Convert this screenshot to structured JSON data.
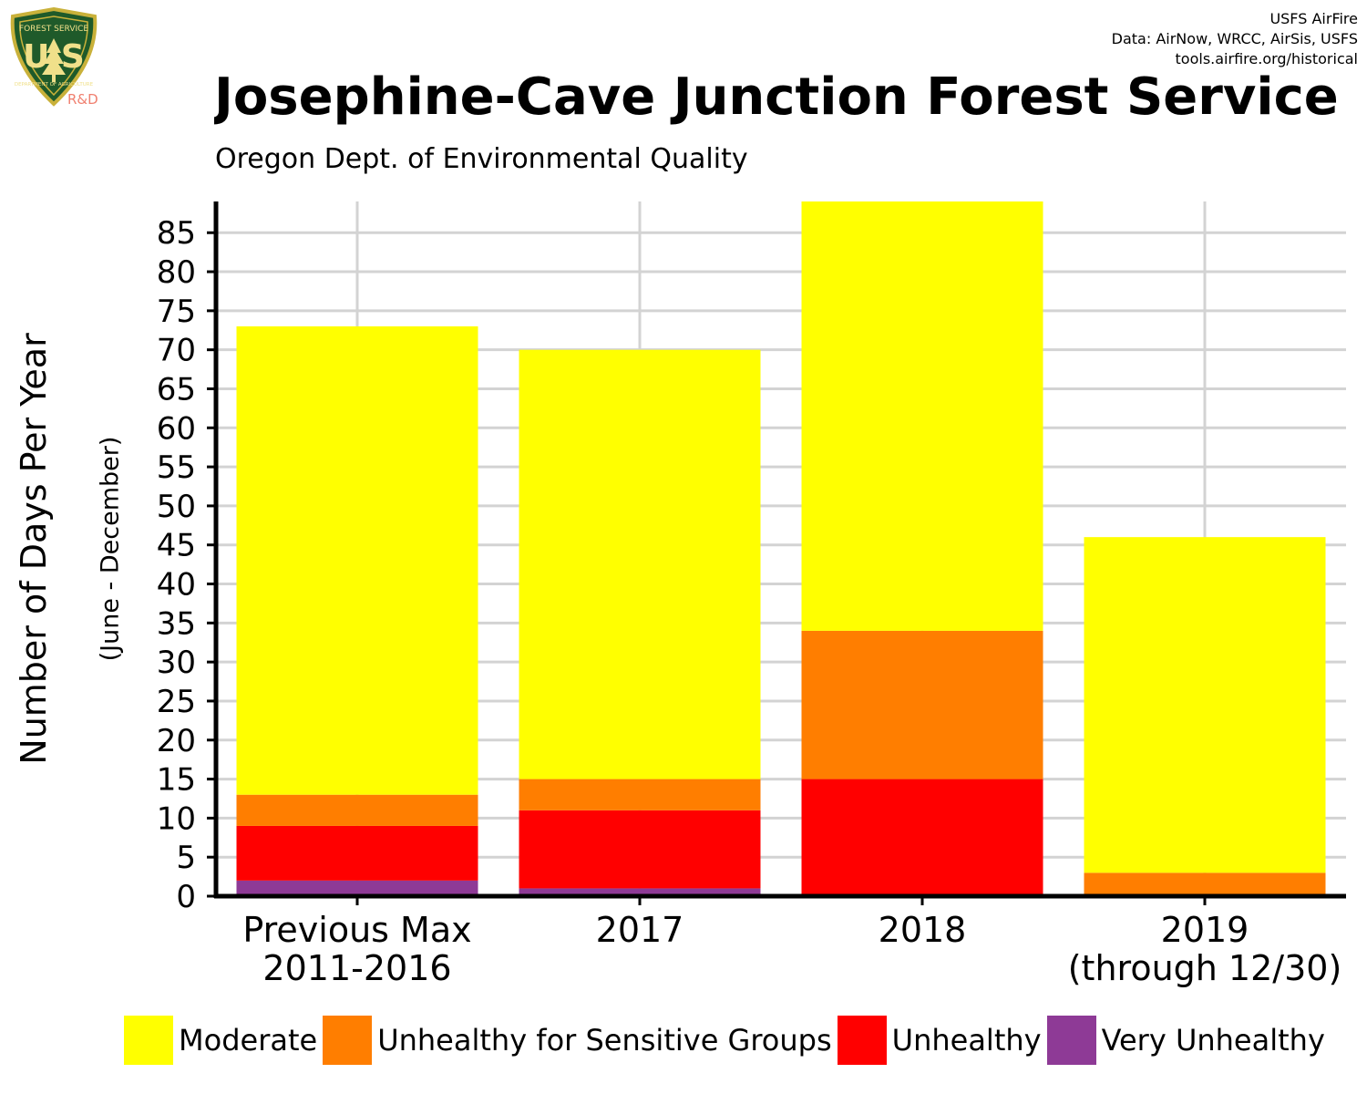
{
  "logo": {
    "top_text": "FOREST SERVICE",
    "letters": "U S",
    "bottom_text": "DEPARTMENT OF AGRICULTURE",
    "tag": "R&D"
  },
  "credits": {
    "line1": "USFS AirFire",
    "line2": "Data: AirNow, WRCC, AirSis, USFS",
    "line3": "tools.airfire.org/historical"
  },
  "chart_data": {
    "type": "bar",
    "stacked": true,
    "title": "Josephine-Cave Junction Forest Service",
    "subtitle": "Oregon Dept. of Environmental Quality",
    "ylabel": "Number of Days Per Year",
    "ylabel_sub": "(June - December)",
    "xlabel": "",
    "categories": [
      "Previous Max\n2011-2016",
      "2017",
      "2018",
      "2019\n(through 12/30)"
    ],
    "ylim": [
      0,
      89
    ],
    "yticks": [
      0,
      5,
      10,
      15,
      20,
      25,
      30,
      35,
      40,
      45,
      50,
      55,
      60,
      65,
      70,
      75,
      80,
      85
    ],
    "grid": true,
    "legend_position": "bottom",
    "series": [
      {
        "name": "Very Unhealthy",
        "color": "#8E3A96",
        "values": [
          2,
          1,
          0,
          0
        ]
      },
      {
        "name": "Unhealthy",
        "color": "#FF0000",
        "values": [
          7,
          10,
          15,
          0
        ]
      },
      {
        "name": "Unhealthy for Sensitive Groups",
        "color": "#FF7E00",
        "values": [
          4,
          4,
          19,
          3
        ]
      },
      {
        "name": "Moderate",
        "color": "#FFFF00",
        "values": [
          60,
          55,
          55,
          43
        ]
      }
    ],
    "legend_order": [
      "Moderate",
      "Unhealthy for Sensitive Groups",
      "Unhealthy",
      "Very Unhealthy"
    ]
  }
}
